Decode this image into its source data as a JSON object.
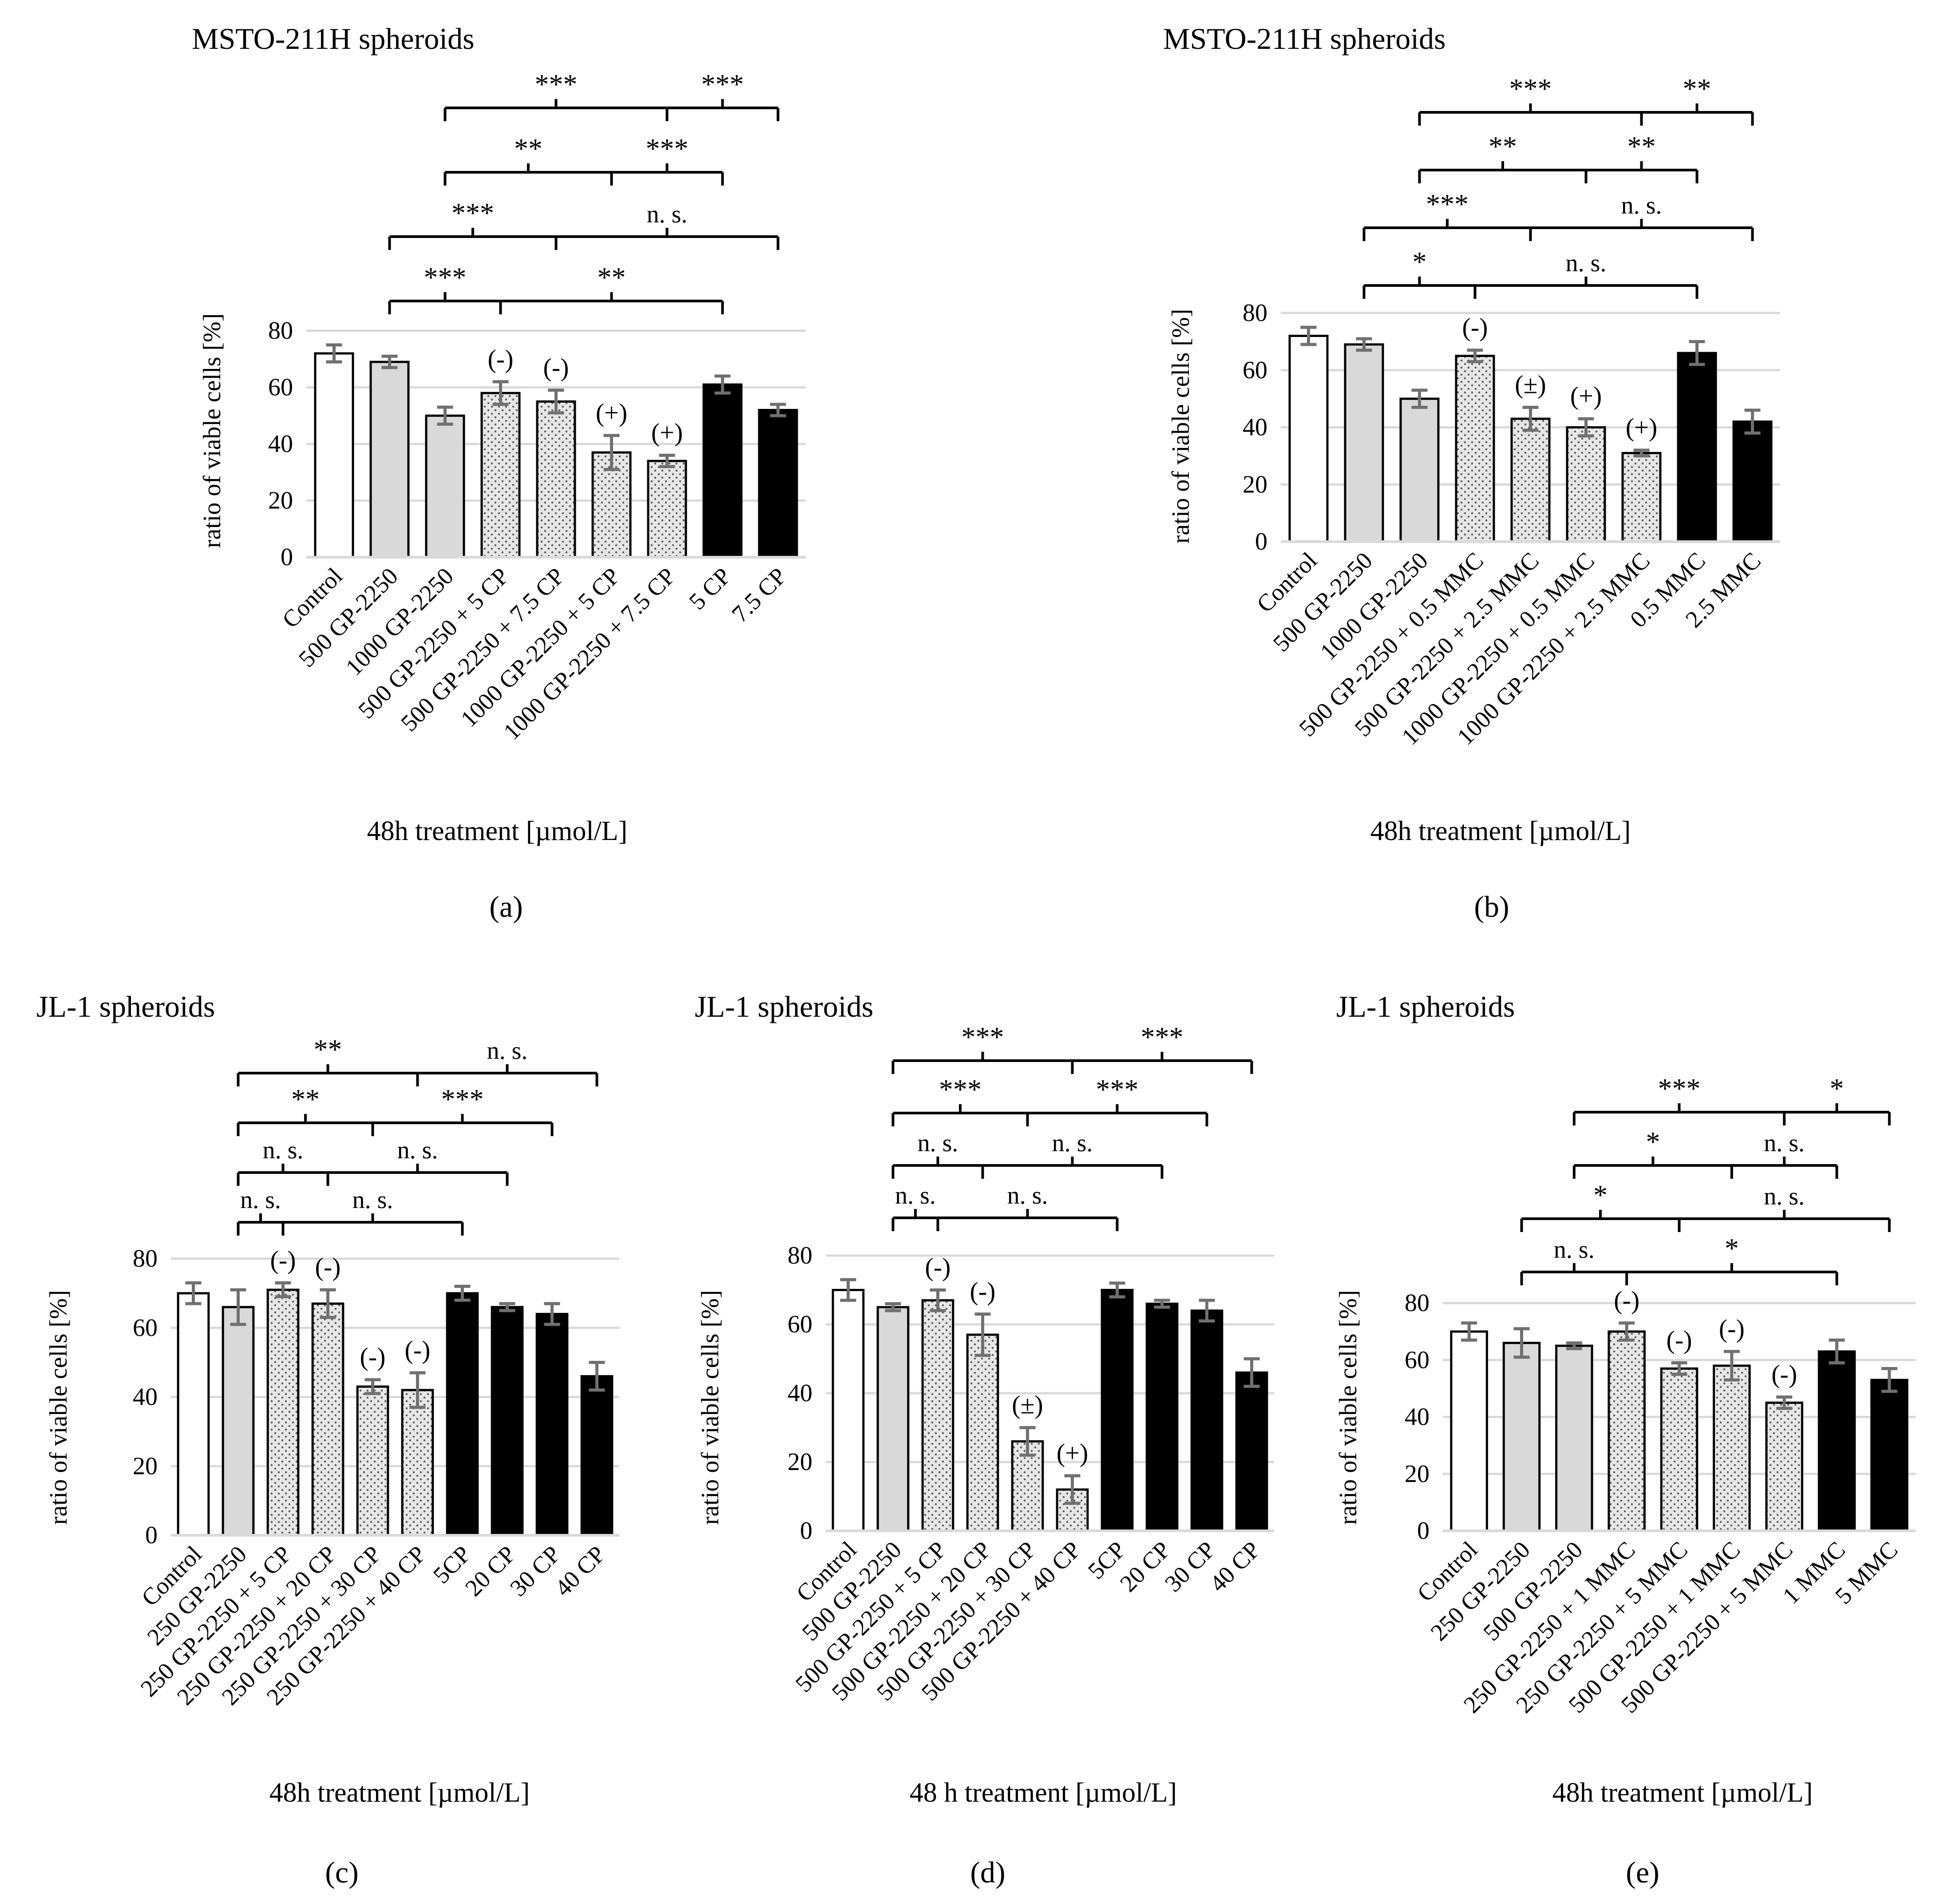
{
  "figure": {
    "labels": [
      "(a)",
      "(b)",
      "(c)",
      "(d)",
      "(e)"
    ]
  },
  "palette": {
    "white": "#ffffff",
    "gray": "#d9d9d9",
    "dotted": "#e4e4e4",
    "black": "#000000",
    "grid": "#d9d9d9",
    "err": "#707070"
  },
  "chart_data": [
    {
      "type": "bar",
      "panel": "(a)",
      "title": "MSTO-211H spheroids",
      "xlabel": "48h treatment [µmol/L]",
      "ylabel": "ratio of viable cells [%]",
      "ylim": [
        0,
        80
      ],
      "yticks": [
        "0",
        "20",
        "40",
        "60",
        "80"
      ],
      "grid": true,
      "categories": [
        "Control",
        "500 GP-2250",
        "1000 GP-2250",
        "500 GP-2250 + 5 CP",
        "500 GP-2250 + 7.5 CP",
        "1000 GP-2250 + 5 CP",
        "1000 GP-2250 + 7.5 CP",
        "5 CP",
        "7.5 CP"
      ],
      "values": [
        72,
        69,
        50,
        58,
        55,
        37,
        34,
        61,
        52
      ],
      "errors": [
        3,
        2,
        3,
        4,
        4,
        6,
        2,
        3,
        2
      ],
      "styles": [
        "white",
        "gray",
        "gray",
        "dotted",
        "dotted",
        "dotted",
        "dotted",
        "black",
        "black"
      ],
      "annotations": [
        "",
        "",
        "",
        "(-)",
        "(-)",
        "(+)",
        "(+)",
        "",
        ""
      ],
      "brackets": [
        {
          "left": 1,
          "mid": 3,
          "right": 7,
          "labels": [
            "***",
            "**"
          ],
          "level": 0
        },
        {
          "left": 1,
          "mid": 4,
          "right": 8,
          "labels": [
            "***",
            "n. s."
          ],
          "level": 1
        },
        {
          "left": 2,
          "mid": 5,
          "right": 7,
          "labels": [
            "**",
            "***"
          ],
          "level": 2
        },
        {
          "left": 2,
          "mid": 6,
          "right": 8,
          "labels": [
            "***",
            "***"
          ],
          "level": 3
        }
      ]
    },
    {
      "type": "bar",
      "panel": "(b)",
      "title": "MSTO-211H spheroids",
      "xlabel": "48h treatment [µmol/L]",
      "ylabel": "ratio of viable cells [%]",
      "ylim": [
        0,
        80
      ],
      "yticks": [
        "0",
        "20",
        "40",
        "60",
        "80"
      ],
      "grid": true,
      "categories": [
        "Control",
        "500 GP-2250",
        "1000 GP-2250",
        "500 GP-2250 + 0.5 MMC",
        "500 GP-2250 + 2.5 MMC",
        "1000 GP-2250 + 0.5 MMC",
        "1000 GP-2250 + 2.5 MMC",
        "0.5 MMC",
        "2.5 MMC"
      ],
      "values": [
        72,
        69,
        50,
        65,
        43,
        40,
        31,
        66,
        42
      ],
      "errors": [
        3,
        2,
        3,
        2,
        4,
        3,
        1,
        4,
        4
      ],
      "styles": [
        "white",
        "gray",
        "gray",
        "dotted",
        "dotted",
        "dotted",
        "dotted",
        "black",
        "black"
      ],
      "annotations": [
        "",
        "",
        "",
        "(-)",
        "(±)",
        "(+)",
        "(+)",
        "",
        ""
      ],
      "brackets": [
        {
          "left": 1,
          "mid": 3,
          "right": 7,
          "labels": [
            "*",
            "n. s."
          ],
          "level": 0
        },
        {
          "left": 1,
          "mid": 4,
          "right": 8,
          "labels": [
            "***",
            "n. s."
          ],
          "level": 1
        },
        {
          "left": 2,
          "mid": 5,
          "right": 7,
          "labels": [
            "**",
            "**"
          ],
          "level": 2
        },
        {
          "left": 2,
          "mid": 6,
          "right": 8,
          "labels": [
            "***",
            "**"
          ],
          "level": 3
        }
      ]
    },
    {
      "type": "bar",
      "panel": "(c)",
      "title": "JL-1 spheroids",
      "xlabel": "48h treatment [µmol/L]",
      "ylabel": "ratio of viable cells [%]",
      "ylim": [
        0,
        80
      ],
      "yticks": [
        "0",
        "20",
        "40",
        "60",
        "80"
      ],
      "grid": true,
      "categories": [
        "Control",
        "250 GP-2250",
        "250 GP-2250 + 5 CP",
        "250 GP-2250 + 20 CP",
        "250 GP-2250 + 30 CP",
        "250 GP-2250 + 40 CP",
        "5CP",
        "20 CP",
        "30 CP",
        "40 CP"
      ],
      "values": [
        70,
        66,
        71,
        67,
        43,
        42,
        70,
        66,
        64,
        46
      ],
      "errors": [
        3,
        5,
        2,
        4,
        2,
        5,
        2,
        1,
        3,
        4
      ],
      "styles": [
        "white",
        "gray",
        "dotted",
        "dotted",
        "dotted",
        "dotted",
        "black",
        "black",
        "black",
        "black"
      ],
      "annotations": [
        "",
        "",
        "(-)",
        "(-)",
        "(-)",
        "(-)",
        "",
        "",
        "",
        ""
      ],
      "brackets": [
        {
          "left": 1,
          "mid": 2,
          "right": 6,
          "labels": [
            "n. s.",
            "n. s."
          ],
          "level": 0
        },
        {
          "left": 1,
          "mid": 3,
          "right": 7,
          "labels": [
            "n. s.",
            "n. s."
          ],
          "level": 1
        },
        {
          "left": 1,
          "mid": 4,
          "right": 8,
          "labels": [
            "**",
            "***"
          ],
          "level": 2
        },
        {
          "left": 1,
          "mid": 5,
          "right": 9,
          "labels": [
            "**",
            "n. s."
          ],
          "level": 3
        }
      ]
    },
    {
      "type": "bar",
      "panel": "(d)",
      "title": "JL-1 spheroids",
      "xlabel": "48 h treatment [µmol/L]",
      "ylabel": "ratio of viable cells [%]",
      "ylim": [
        0,
        80
      ],
      "yticks": [
        "0",
        "20",
        "40",
        "60",
        "80"
      ],
      "grid": true,
      "categories": [
        "Control",
        "500 GP-2250",
        "500 GP-2250 + 5 CP",
        "500 GP-2250 + 20 CP",
        "500 GP-2250 + 30 CP",
        "500 GP-2250 + 40 CP",
        "5CP",
        "20 CP",
        "30 CP",
        "40 CP"
      ],
      "values": [
        70,
        65,
        67,
        57,
        26,
        12,
        70,
        66,
        64,
        46
      ],
      "errors": [
        3,
        1,
        3,
        6,
        4,
        4,
        2,
        1,
        3,
        4
      ],
      "styles": [
        "white",
        "gray",
        "dotted",
        "dotted",
        "dotted",
        "dotted",
        "black",
        "black",
        "black",
        "black"
      ],
      "annotations": [
        "",
        "",
        "(-)",
        "(-)",
        "(±)",
        "(+)",
        "",
        "",
        "",
        ""
      ],
      "brackets": [
        {
          "left": 1,
          "mid": 2,
          "right": 6,
          "labels": [
            "n. s.",
            "n. s."
          ],
          "level": 0
        },
        {
          "left": 1,
          "mid": 3,
          "right": 7,
          "labels": [
            "n. s.",
            "n. s."
          ],
          "level": 1
        },
        {
          "left": 1,
          "mid": 4,
          "right": 8,
          "labels": [
            "***",
            "***"
          ],
          "level": 2
        },
        {
          "left": 1,
          "mid": 5,
          "right": 9,
          "labels": [
            "***",
            "***"
          ],
          "level": 3
        }
      ]
    },
    {
      "type": "bar",
      "panel": "(e)",
      "title": "JL-1 spheroids",
      "xlabel": "48h treatment [µmol/L]",
      "ylabel": "ratio of viable cells [%]",
      "ylim": [
        0,
        80
      ],
      "yticks": [
        "0",
        "20",
        "40",
        "60",
        "80"
      ],
      "grid": true,
      "categories": [
        "Control",
        "250 GP-2250",
        "500 GP-2250",
        "250 GP-2250 + 1 MMC",
        "250 GP-2250 + 5 MMC",
        "500 GP-2250 + 1 MMC",
        "500 GP-2250 + 5 MMC",
        "1 MMC",
        "5 MMC"
      ],
      "values": [
        70,
        66,
        65,
        70,
        57,
        58,
        45,
        63,
        53
      ],
      "errors": [
        3,
        5,
        1,
        3,
        2,
        5,
        2,
        4,
        4
      ],
      "styles": [
        "white",
        "gray",
        "gray",
        "dotted",
        "dotted",
        "dotted",
        "dotted",
        "black",
        "black"
      ],
      "annotations": [
        "",
        "",
        "",
        "(-)",
        "(-)",
        "(-)",
        "(-)",
        "",
        ""
      ],
      "brackets": [
        {
          "left": 1,
          "mid": 3,
          "right": 7,
          "labels": [
            "n. s.",
            "*"
          ],
          "level": 0
        },
        {
          "left": 1,
          "mid": 4,
          "right": 8,
          "labels": [
            "*",
            "n. s."
          ],
          "level": 1
        },
        {
          "left": 2,
          "mid": 5,
          "right": 7,
          "labels": [
            "*",
            "n. s."
          ],
          "level": 2
        },
        {
          "left": 2,
          "mid": 6,
          "right": 8,
          "labels": [
            "***",
            "*"
          ],
          "level": 3
        }
      ]
    }
  ]
}
